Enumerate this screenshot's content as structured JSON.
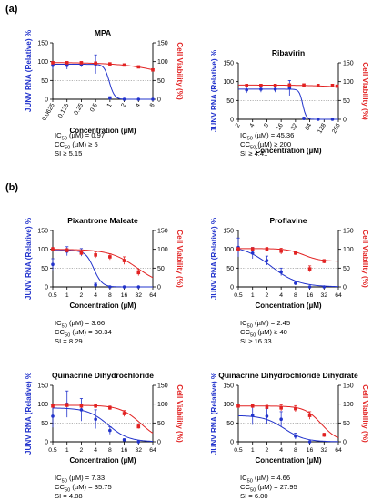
{
  "panels": [
    {
      "letter": "(a)"
    },
    {
      "letter": "(b)"
    }
  ],
  "common": {
    "ylabel_left": "JUNV RNA (Relative) %",
    "ylabel_right": "Cell Viability (%)",
    "xlabel": "Concentration (µM)",
    "colors": {
      "rna": "#2233cc",
      "viability": "#e22222",
      "reference": "#888888"
    }
  },
  "chart_data": [
    {
      "type": "line",
      "title": "MPA",
      "xscale": "log2",
      "xticks": [
        "0.0625",
        "0.125",
        "0.25",
        "0.5",
        "1",
        "2",
        "4",
        "8"
      ],
      "xtick_values": [
        0.0625,
        0.125,
        0.25,
        0.5,
        1,
        2,
        4,
        8
      ],
      "xlim": [
        0.0625,
        8
      ],
      "yticks": [
        0,
        50,
        100,
        150
      ],
      "ylim": [
        0,
        150
      ],
      "reference_line": 50,
      "series": [
        {
          "x": [
            0.0625,
            0.125,
            0.25,
            0.5,
            1,
            2,
            4,
            8
          ],
          "y": [
            90,
            90,
            92,
            93,
            3,
            0,
            0,
            0
          ],
          "err": [
            10,
            10,
            6,
            25,
            4,
            0,
            0,
            0
          ],
          "fit": {
            "top": 93,
            "bottom": 0,
            "ec50": 0.97,
            "hill": 8
          }
        },
        {
          "x": [
            0.0625,
            0.125,
            0.25,
            0.5,
            1,
            2,
            4,
            8
          ],
          "y": [
            97,
            97,
            97,
            96,
            94,
            91,
            86,
            78
          ],
          "err": [
            3,
            3,
            3,
            3,
            3,
            3,
            3,
            3
          ],
          "fit": {
            "top": 98,
            "bottom": 0,
            "ec50": 45,
            "hill": 0.8
          }
        }
      ],
      "stats": {
        "ic50": "= 0.97",
        "cc50": "≥ 5",
        "si": "≥ 5.15"
      }
    },
    {
      "type": "line",
      "title": "Ribavirin",
      "xscale": "log2",
      "xticks": [
        "2",
        "4",
        "8",
        "16",
        "32",
        "64",
        "128",
        "256"
      ],
      "xtick_values": [
        2,
        4,
        8,
        16,
        32,
        64,
        128,
        256
      ],
      "xlim": [
        2,
        256
      ],
      "yticks": [
        0,
        50,
        100,
        150
      ],
      "ylim": [
        0,
        150
      ],
      "reference_line": 50,
      "series": [
        {
          "x": [
            3,
            6,
            12,
            24,
            48,
            96,
            192
          ],
          "y": [
            78,
            80,
            80,
            83,
            2,
            0,
            0
          ],
          "err": [
            8,
            8,
            8,
            20,
            4,
            0,
            0
          ],
          "fit": {
            "top": 80,
            "bottom": 0,
            "ec50": 45.36,
            "hill": 12
          }
        },
        {
          "x": [
            3,
            6,
            12,
            24,
            48,
            96,
            192,
            240
          ],
          "y": [
            90,
            90,
            90,
            91,
            91,
            90,
            90,
            88
          ],
          "err": [
            3,
            3,
            3,
            3,
            3,
            3,
            3,
            3
          ],
          "fit": {
            "top": 91,
            "bottom": 0,
            "ec50": 4000,
            "hill": 1
          }
        }
      ],
      "stats": {
        "ic50": "= 45.36",
        "cc50": "≥ 200",
        "si": "≥ 4.41"
      }
    },
    {
      "type": "line",
      "title": "Pixantrone Maleate",
      "xscale": "log2",
      "xticks": [
        "0.5",
        "1",
        "2",
        "4",
        "8",
        "16",
        "32",
        "64"
      ],
      "xtick_values": [
        0.5,
        1,
        2,
        4,
        8,
        16,
        32,
        64
      ],
      "xlim": [
        0.5,
        64
      ],
      "yticks": [
        0,
        50,
        100,
        150
      ],
      "ylim": [
        0,
        150
      ],
      "reference_line": 50,
      "series": [
        {
          "x": [
            0.5,
            1,
            2,
            4,
            8,
            16,
            32
          ],
          "y": [
            60,
            95,
            92,
            5,
            0,
            0,
            0
          ],
          "err": [
            15,
            12,
            10,
            5,
            0,
            0,
            0
          ],
          "fit": {
            "top": 97,
            "bottom": 0,
            "ec50": 3.66,
            "hill": 5
          }
        },
        {
          "x": [
            0.5,
            1,
            2,
            4,
            8,
            16,
            32
          ],
          "y": [
            100,
            97,
            90,
            85,
            80,
            70,
            38
          ],
          "err": [
            5,
            5,
            5,
            8,
            8,
            10,
            8
          ],
          "fit": {
            "top": 100,
            "bottom": 0,
            "ec50": 30.34,
            "hill": 1.5
          }
        }
      ],
      "stats": {
        "ic50": "= 3.66",
        "cc50": "= 30.34",
        "si": "= 8.29"
      }
    },
    {
      "type": "line",
      "title": "Proflavine",
      "xscale": "log2",
      "xticks": [
        "0.5",
        "1",
        "2",
        "4",
        "8",
        "16",
        "32",
        "64"
      ],
      "xtick_values": [
        0.5,
        1,
        2,
        4,
        8,
        16,
        32,
        64
      ],
      "xlim": [
        0.5,
        64
      ],
      "yticks": [
        0,
        50,
        100,
        150
      ],
      "ylim": [
        0,
        150
      ],
      "reference_line": 50,
      "series": [
        {
          "x": [
            0.5,
            1,
            2,
            4,
            8,
            16,
            32
          ],
          "y": [
            105,
            90,
            70,
            40,
            10,
            0,
            0
          ],
          "err": [
            25,
            15,
            12,
            10,
            5,
            0,
            0
          ],
          "fit": {
            "top": 110,
            "bottom": 0,
            "ec50": 2.45,
            "hill": 1.5
          }
        },
        {
          "x": [
            0.5,
            1,
            2,
            4,
            8,
            16,
            32
          ],
          "y": [
            100,
            100,
            100,
            95,
            90,
            48,
            68
          ],
          "err": [
            5,
            5,
            5,
            8,
            5,
            8,
            5
          ],
          "fit": {
            "top": 102,
            "bottom": 68,
            "ec50": 12,
            "hill": 2.5
          }
        }
      ],
      "stats": {
        "ic50": "= 2.45",
        "cc50": "≥ 40",
        "si": "≥ 16.33"
      }
    },
    {
      "type": "line",
      "title": "Quinacrine Dihydrochloride",
      "xscale": "log2",
      "xticks": [
        "0.5",
        "1",
        "2",
        "4",
        "8",
        "16",
        "32",
        "64"
      ],
      "xtick_values": [
        0.5,
        1,
        2,
        4,
        8,
        16,
        32,
        64
      ],
      "xlim": [
        0.5,
        64
      ],
      "yticks": [
        0,
        50,
        100,
        150
      ],
      "ylim": [
        0,
        150
      ],
      "reference_line": 50,
      "series": [
        {
          "x": [
            0.5,
            1,
            2,
            4,
            8,
            16,
            32
          ],
          "y": [
            68,
            100,
            85,
            60,
            30,
            5,
            0
          ],
          "err": [
            30,
            35,
            30,
            25,
            10,
            3,
            0
          ],
          "fit": {
            "top": 90,
            "bottom": 0,
            "ec50": 7.33,
            "hill": 2
          }
        },
        {
          "x": [
            0.5,
            1,
            2,
            4,
            8,
            16,
            32
          ],
          "y": [
            95,
            97,
            95,
            95,
            90,
            75,
            40
          ],
          "err": [
            5,
            5,
            5,
            5,
            5,
            8,
            5
          ],
          "fit": {
            "top": 97,
            "bottom": 0,
            "ec50": 35.75,
            "hill": 2
          }
        }
      ],
      "stats": {
        "ic50": "= 7.33",
        "cc50": "= 35.75",
        "si": "= 4.88"
      }
    },
    {
      "type": "line",
      "title": "Quinacrine Dihydrochloride Dihydrate",
      "xscale": "log2",
      "xticks": [
        "0.5",
        "1",
        "2",
        "4",
        "8",
        "16",
        "32",
        "64"
      ],
      "xtick_values": [
        0.5,
        1,
        2,
        4,
        8,
        16,
        32,
        64
      ],
      "xlim": [
        0.5,
        64
      ],
      "yticks": [
        0,
        50,
        100,
        150
      ],
      "ylim": [
        0,
        150
      ],
      "reference_line": 50,
      "series": [
        {
          "x": [
            1,
            2,
            4,
            8,
            16
          ],
          "y": [
            70,
            68,
            60,
            15,
            0
          ],
          "err": [
            25,
            20,
            20,
            8,
            0
          ],
          "fit": {
            "top": 70,
            "bottom": 0,
            "ec50": 4.66,
            "hill": 2
          }
        },
        {
          "x": [
            0.5,
            1,
            2,
            4,
            8,
            16,
            32
          ],
          "y": [
            95,
            95,
            92,
            90,
            88,
            70,
            18
          ],
          "err": [
            5,
            5,
            5,
            8,
            8,
            10,
            5
          ],
          "fit": {
            "top": 95,
            "bottom": 0,
            "ec50": 27.95,
            "hill": 2.5
          }
        }
      ],
      "stats": {
        "ic50": "= 4.66",
        "cc50": "= 27.95",
        "si": "= 6.00"
      }
    }
  ]
}
